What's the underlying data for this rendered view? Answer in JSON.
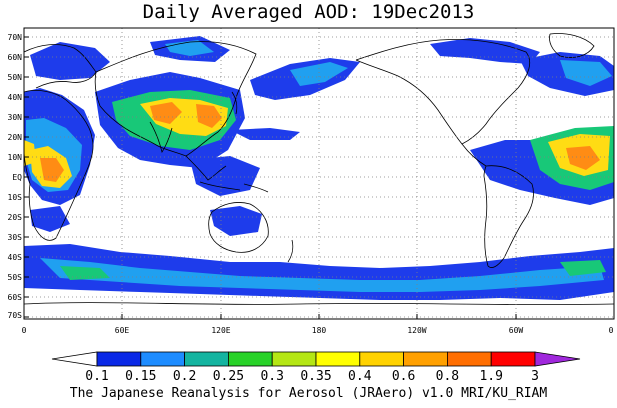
{
  "title": "Daily Averaged AOD: 19Dec2013",
  "footer": "The Japanese Reanalysis for Aerosol (JRAero) v1.0 MRI/KU_RIAM",
  "map": {
    "lat_labels": [
      "70N",
      "60N",
      "50N",
      "40N",
      "30N",
      "20N",
      "10N",
      "EQ",
      "10S",
      "20S",
      "30S",
      "40S",
      "50S",
      "60S",
      "70S"
    ],
    "lon_labels": [
      "0",
      "60E",
      "120E",
      "180",
      "120W",
      "60W",
      "0"
    ],
    "graticule": "dotted",
    "frame_color": "#000000",
    "coast_color": "#000000"
  },
  "colorbar": {
    "ticks": [
      "0.1",
      "0.15",
      "0.2",
      "0.25",
      "0.3",
      "0.35",
      "0.4",
      "0.6",
      "0.8",
      "1.9",
      "3"
    ],
    "colors": [
      "#ffffff",
      "#0a28e6",
      "#1e8cff",
      "#14b4a0",
      "#28d228",
      "#b4e614",
      "#ffff00",
      "#ffd200",
      "#ffa000",
      "#ff6e00",
      "#ff0000",
      "#a028dc"
    ]
  },
  "aod_field_colors": {
    "low": "#1e3ceb",
    "moderate": "#20a0f0",
    "elevated": "#18c878",
    "high": "#ffdc14",
    "very_high": "#ff8c14",
    "extreme": "#e63c14"
  }
}
